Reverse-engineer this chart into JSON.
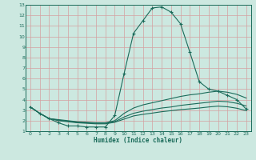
{
  "xlabel": "Humidex (Indice chaleur)",
  "xlim": [
    -0.5,
    23.5
  ],
  "ylim": [
    1,
    13
  ],
  "xticks": [
    0,
    1,
    2,
    3,
    4,
    5,
    6,
    7,
    8,
    9,
    10,
    11,
    12,
    13,
    14,
    15,
    16,
    17,
    18,
    19,
    20,
    21,
    22,
    23
  ],
  "yticks": [
    1,
    2,
    3,
    4,
    5,
    6,
    7,
    8,
    9,
    10,
    11,
    12,
    13
  ],
  "bg_color": "#cce8e0",
  "grid_color": "#d4a0a0",
  "line_color": "#1a6b5a",
  "lines": [
    {
      "x": [
        0,
        1,
        2,
        3,
        4,
        5,
        6,
        7,
        8,
        9,
        10,
        11,
        12,
        13,
        14,
        15,
        16,
        17,
        18,
        19,
        20,
        21,
        22,
        23
      ],
      "y": [
        3.3,
        2.7,
        2.2,
        1.8,
        1.5,
        1.5,
        1.4,
        1.4,
        1.4,
        2.5,
        6.5,
        10.3,
        11.5,
        12.7,
        12.8,
        12.3,
        11.2,
        8.5,
        5.7,
        5.0,
        4.8,
        4.4,
        4.0,
        3.1
      ],
      "marker": true
    },
    {
      "x": [
        0,
        1,
        2,
        3,
        4,
        5,
        6,
        7,
        8,
        9,
        10,
        11,
        12,
        13,
        14,
        15,
        16,
        17,
        18,
        19,
        20,
        21,
        22,
        23
      ],
      "y": [
        3.3,
        2.7,
        2.2,
        2.1,
        2.0,
        1.9,
        1.85,
        1.8,
        1.8,
        2.0,
        2.7,
        3.2,
        3.5,
        3.7,
        3.9,
        4.1,
        4.3,
        4.45,
        4.55,
        4.7,
        4.8,
        4.7,
        4.5,
        4.15
      ],
      "marker": false
    },
    {
      "x": [
        0,
        1,
        2,
        3,
        4,
        5,
        6,
        7,
        8,
        9,
        10,
        11,
        12,
        13,
        14,
        15,
        16,
        17,
        18,
        19,
        20,
        21,
        22,
        23
      ],
      "y": [
        3.3,
        2.7,
        2.2,
        2.05,
        1.95,
        1.85,
        1.8,
        1.75,
        1.75,
        1.9,
        2.35,
        2.7,
        2.9,
        3.05,
        3.2,
        3.3,
        3.45,
        3.55,
        3.65,
        3.75,
        3.85,
        3.8,
        3.65,
        3.4
      ],
      "marker": false
    },
    {
      "x": [
        0,
        1,
        2,
        3,
        4,
        5,
        6,
        7,
        8,
        9,
        10,
        11,
        12,
        13,
        14,
        15,
        16,
        17,
        18,
        19,
        20,
        21,
        22,
        23
      ],
      "y": [
        3.3,
        2.7,
        2.2,
        2.0,
        1.9,
        1.8,
        1.75,
        1.7,
        1.7,
        1.85,
        2.15,
        2.45,
        2.6,
        2.72,
        2.85,
        2.95,
        3.05,
        3.12,
        3.2,
        3.3,
        3.38,
        3.32,
        3.18,
        2.95
      ],
      "marker": false
    }
  ]
}
